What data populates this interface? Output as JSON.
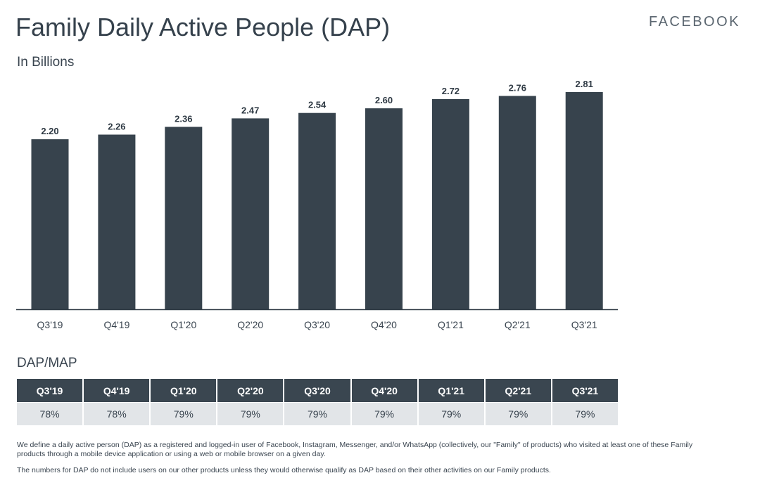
{
  "header": {
    "title": "Family Daily Active People (DAP)",
    "brand": "FACEBOOK"
  },
  "chart_data": {
    "type": "bar",
    "subtitle": "In Billions",
    "categories": [
      "Q3'19",
      "Q4'19",
      "Q1'20",
      "Q2'20",
      "Q3'20",
      "Q4'20",
      "Q1'21",
      "Q2'21",
      "Q3'21"
    ],
    "values": [
      2.2,
      2.26,
      2.36,
      2.47,
      2.54,
      2.6,
      2.72,
      2.76,
      2.81
    ],
    "value_labels": [
      "2.20",
      "2.26",
      "2.36",
      "2.47",
      "2.54",
      "2.60",
      "2.72",
      "2.76",
      "2.81"
    ],
    "bar_color": "#37434d",
    "grid": false,
    "ylim": [
      0,
      2.81
    ]
  },
  "dapmap": {
    "title": "DAP/MAP",
    "headers": [
      "Q3'19",
      "Q4'19",
      "Q1'20",
      "Q2'20",
      "Q3'20",
      "Q4'20",
      "Q1'21",
      "Q2'21",
      "Q3'21"
    ],
    "values": [
      "78%",
      "78%",
      "79%",
      "79%",
      "79%",
      "79%",
      "79%",
      "79%",
      "79%"
    ],
    "header_color": "#3a4650",
    "row_color": "#e2e5e8"
  },
  "footnotes": [
    "We define a daily active person (DAP) as a registered and logged-in user of Facebook, Instagram, Messenger, and/or WhatsApp (collectively, our \"Family\" of products) who visited at least one of these Family products through a mobile device application or using a web or mobile browser on a given day.",
    "The numbers for DAP do not include users on our other products unless they would otherwise qualify as DAP based on their other activities on our Family products."
  ]
}
